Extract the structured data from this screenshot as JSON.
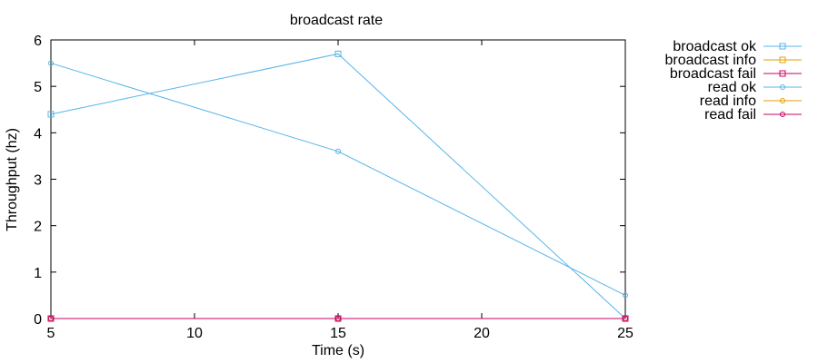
{
  "chart_data": {
    "type": "line",
    "title": "broadcast rate",
    "xlabel": "Time (s)",
    "ylabel": "Throughput (hz)",
    "xlim": [
      5,
      25
    ],
    "ylim": [
      0,
      6
    ],
    "xticks": [
      5,
      10,
      15,
      20,
      25
    ],
    "yticks": [
      0,
      1,
      2,
      3,
      4,
      5,
      6
    ],
    "grid": false,
    "legend_position": "outside-right",
    "series": [
      {
        "name": "broadcast ok",
        "color": "#56b4e9",
        "marker": "square",
        "x": [
          5,
          15,
          25
        ],
        "y": [
          4.4,
          5.7,
          0
        ]
      },
      {
        "name": "broadcast info",
        "color": "#e69f00",
        "marker": "square",
        "x": [
          5,
          15,
          25
        ],
        "y": [
          0,
          0,
          0
        ]
      },
      {
        "name": "broadcast fail",
        "color": "#cc0066",
        "marker": "square",
        "x": [
          5,
          15,
          25
        ],
        "y": [
          0,
          0,
          0
        ]
      },
      {
        "name": "read ok",
        "color": "#56b4e9",
        "marker": "circle",
        "x": [
          5,
          15,
          25
        ],
        "y": [
          5.5,
          3.6,
          0.5
        ]
      },
      {
        "name": "read info",
        "color": "#e69f00",
        "marker": "circle",
        "x": [
          5,
          15,
          25
        ],
        "y": [
          0,
          0,
          0
        ]
      },
      {
        "name": "read fail",
        "color": "#cc0066",
        "marker": "circle",
        "x": [
          5,
          15,
          25
        ],
        "y": [
          0,
          0,
          0
        ]
      }
    ]
  }
}
